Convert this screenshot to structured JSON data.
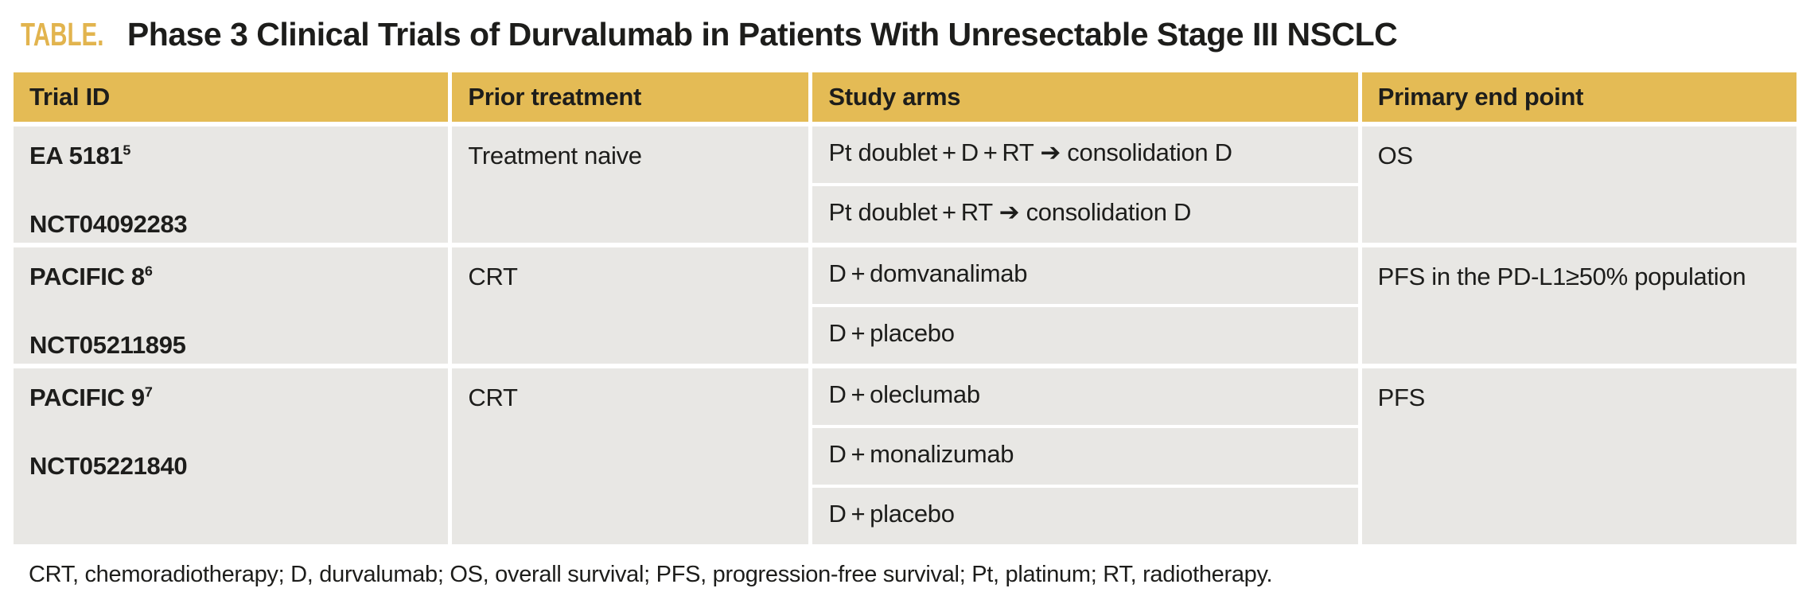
{
  "title": {
    "label": "TABLE.",
    "text": "Phase 3 Clinical Trials of Durvalumab in Patients With Unresectable Stage III NSCLC"
  },
  "colors": {
    "accent_gold": "#e2b44e",
    "header_bg": "#e4bb55",
    "cell_bg": "#e8e7e4",
    "text": "#1d1d1b"
  },
  "table": {
    "columns": [
      "Trial ID",
      "Prior treatment",
      "Study arms",
      "Primary end point"
    ],
    "rows": [
      {
        "trial_id": "EA 5181",
        "trial_ref": "5",
        "nct": "NCT04092283",
        "prior_treatment": "Treatment naive",
        "study_arms": [
          "Pt doublet + D + RT ➔ consolidation D",
          "Pt doublet + RT ➔ consolidation D"
        ],
        "primary_end_point": "OS"
      },
      {
        "trial_id": "PACIFIC 8",
        "trial_ref": "6",
        "nct": "NCT05211895",
        "prior_treatment": "CRT",
        "study_arms": [
          "D + domvanalimab",
          "D + placebo"
        ],
        "primary_end_point": "PFS in the PD-L1≥50% population"
      },
      {
        "trial_id": "PACIFIC 9",
        "trial_ref": "7",
        "nct": "NCT05221840",
        "prior_treatment": "CRT",
        "study_arms": [
          "D + oleclumab",
          "D + monalizumab",
          "D + placebo"
        ],
        "primary_end_point": "PFS"
      }
    ]
  },
  "footnote": "CRT, chemoradiotherapy; D, durvalumab; OS, overall survival; PFS, progression-free survival; Pt, platinum; RT, radiotherapy."
}
